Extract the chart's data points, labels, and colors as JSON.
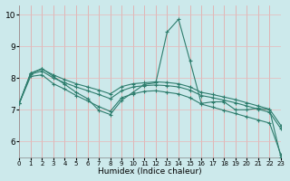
{
  "xlabel": "Humidex (Indice chaleur)",
  "x_ticks": [
    0,
    1,
    2,
    3,
    4,
    5,
    6,
    7,
    8,
    9,
    10,
    11,
    12,
    13,
    14,
    15,
    16,
    17,
    18,
    19,
    20,
    21,
    22,
    23
  ],
  "xlim": [
    0,
    23
  ],
  "ylim": [
    5.5,
    10.3
  ],
  "y_ticks": [
    6,
    7,
    8,
    9,
    10
  ],
  "line_color": "#2e7d6d",
  "bg_color": "#cce9eb",
  "grid_color_v": "#e8a0a0",
  "grid_color_h": "#e8b8b8",
  "lines": [
    {
      "x": [
        0,
        1,
        2,
        3,
        4,
        5,
        6,
        7,
        8,
        9,
        10,
        11,
        12,
        13,
        14,
        15,
        16,
        17,
        18,
        19,
        20,
        21,
        22,
        23
      ],
      "y": [
        7.2,
        8.15,
        8.3,
        8.05,
        7.8,
        7.55,
        7.35,
        6.98,
        6.85,
        7.3,
        7.55,
        7.8,
        7.85,
        9.45,
        9.85,
        8.55,
        7.2,
        7.25,
        7.25,
        7.0,
        7.0,
        7.05,
        7.0,
        5.5
      ]
    },
    {
      "x": [
        0,
        1,
        2,
        3,
        4,
        5,
        6,
        7,
        8,
        9,
        10,
        11,
        12,
        13,
        14,
        15,
        16,
        17,
        18,
        19,
        20,
        21,
        22,
        23
      ],
      "y": [
        7.2,
        8.15,
        8.28,
        8.1,
        7.95,
        7.82,
        7.72,
        7.62,
        7.5,
        7.73,
        7.82,
        7.85,
        7.88,
        7.86,
        7.82,
        7.72,
        7.55,
        7.48,
        7.4,
        7.32,
        7.22,
        7.12,
        7.02,
        6.5
      ]
    },
    {
      "x": [
        0,
        1,
        2,
        3,
        4,
        5,
        6,
        7,
        8,
        9,
        10,
        11,
        12,
        13,
        14,
        15,
        16,
        17,
        18,
        19,
        20,
        21,
        22,
        23
      ],
      "y": [
        7.2,
        8.12,
        8.22,
        8.0,
        7.85,
        7.72,
        7.6,
        7.48,
        7.35,
        7.6,
        7.72,
        7.76,
        7.78,
        7.76,
        7.72,
        7.62,
        7.45,
        7.38,
        7.3,
        7.22,
        7.12,
        7.02,
        6.92,
        6.4
      ]
    },
    {
      "x": [
        0,
        1,
        2,
        3,
        4,
        5,
        6,
        7,
        8,
        9,
        10,
        11,
        12,
        13,
        14,
        15,
        16,
        17,
        18,
        19,
        20,
        21,
        22,
        23
      ],
      "y": [
        7.2,
        8.05,
        8.1,
        7.82,
        7.65,
        7.45,
        7.28,
        7.1,
        6.95,
        7.38,
        7.5,
        7.58,
        7.6,
        7.55,
        7.5,
        7.38,
        7.18,
        7.08,
        6.98,
        6.88,
        6.78,
        6.68,
        6.58,
        5.58
      ]
    }
  ]
}
